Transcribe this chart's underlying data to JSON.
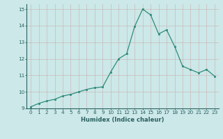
{
  "x": [
    0,
    1,
    2,
    3,
    4,
    5,
    6,
    7,
    8,
    9,
    10,
    11,
    12,
    13,
    14,
    15,
    16,
    17,
    18,
    19,
    20,
    21,
    22,
    23
  ],
  "y": [
    9.1,
    9.3,
    9.45,
    9.55,
    9.75,
    9.85,
    10.0,
    10.15,
    10.25,
    10.3,
    11.2,
    12.0,
    12.3,
    13.95,
    15.0,
    14.65,
    13.5,
    13.75,
    12.75,
    11.55,
    11.35,
    11.15,
    11.35,
    10.95
  ],
  "line_color": "#2e8b7a",
  "marker_color": "#2e8b7a",
  "bg_color": "#cce8e8",
  "grid_color": "#b8d8d8",
  "xlabel": "Humidex (Indice chaleur)",
  "ylim": [
    9.0,
    15.3
  ],
  "xlim": [
    -0.5,
    23.5
  ],
  "yticks": [
    9,
    10,
    11,
    12,
    13,
    14,
    15
  ],
  "xticks": [
    0,
    1,
    2,
    3,
    4,
    5,
    6,
    7,
    8,
    9,
    10,
    11,
    12,
    13,
    14,
    15,
    16,
    17,
    18,
    19,
    20,
    21,
    22,
    23
  ],
  "xlabel_fontsize": 6.0,
  "tick_fontsize": 5.2
}
